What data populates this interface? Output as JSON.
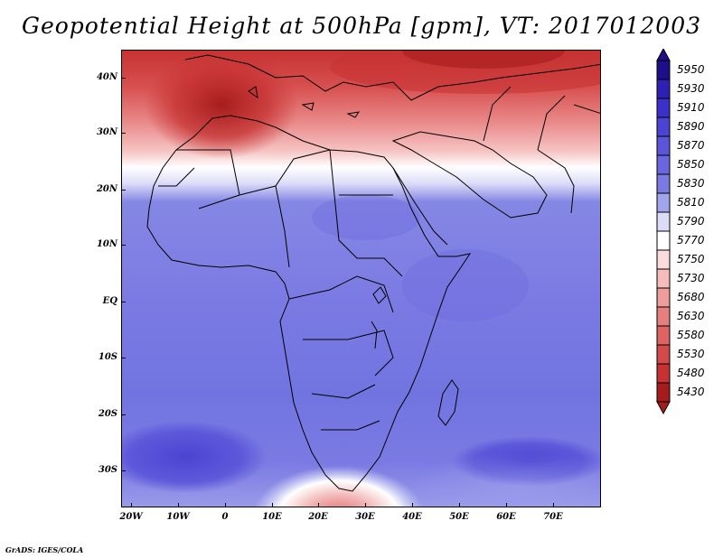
{
  "title": "Geopotential Height at 500hPa [gpm], VT: 2017012003",
  "footer": "GrADS: IGES/COLA",
  "lat_labels": [
    "40N",
    "30N",
    "20N",
    "10N",
    "EQ",
    "10S",
    "20S",
    "30S"
  ],
  "lon_labels": [
    "20W",
    "10W",
    "0",
    "10E",
    "20E",
    "30E",
    "40E",
    "50E",
    "60E",
    "70E"
  ],
  "legend": {
    "values": [
      "5950",
      "5930",
      "5910",
      "5890",
      "5870",
      "5850",
      "5830",
      "5810",
      "5790",
      "5770",
      "5750",
      "5730",
      "5680",
      "5630",
      "5580",
      "5530",
      "5480",
      "5430"
    ],
    "colors": [
      "#1f0e8a",
      "#2f20b4",
      "#3b30c8",
      "#4a44d2",
      "#5a55d9",
      "#6a66df",
      "#7b7ae3",
      "#a2a4ec",
      "#dcdcf8",
      "#ffffff",
      "#fbdcdc",
      "#f6bcbc",
      "#ee9c9c",
      "#e68080",
      "#de6464",
      "#d44a4a",
      "#c63232",
      "#a61c1c"
    ],
    "top_arrow_color": "#1f0e8a",
    "bottom_arrow_color": "#a61c1c"
  }
}
